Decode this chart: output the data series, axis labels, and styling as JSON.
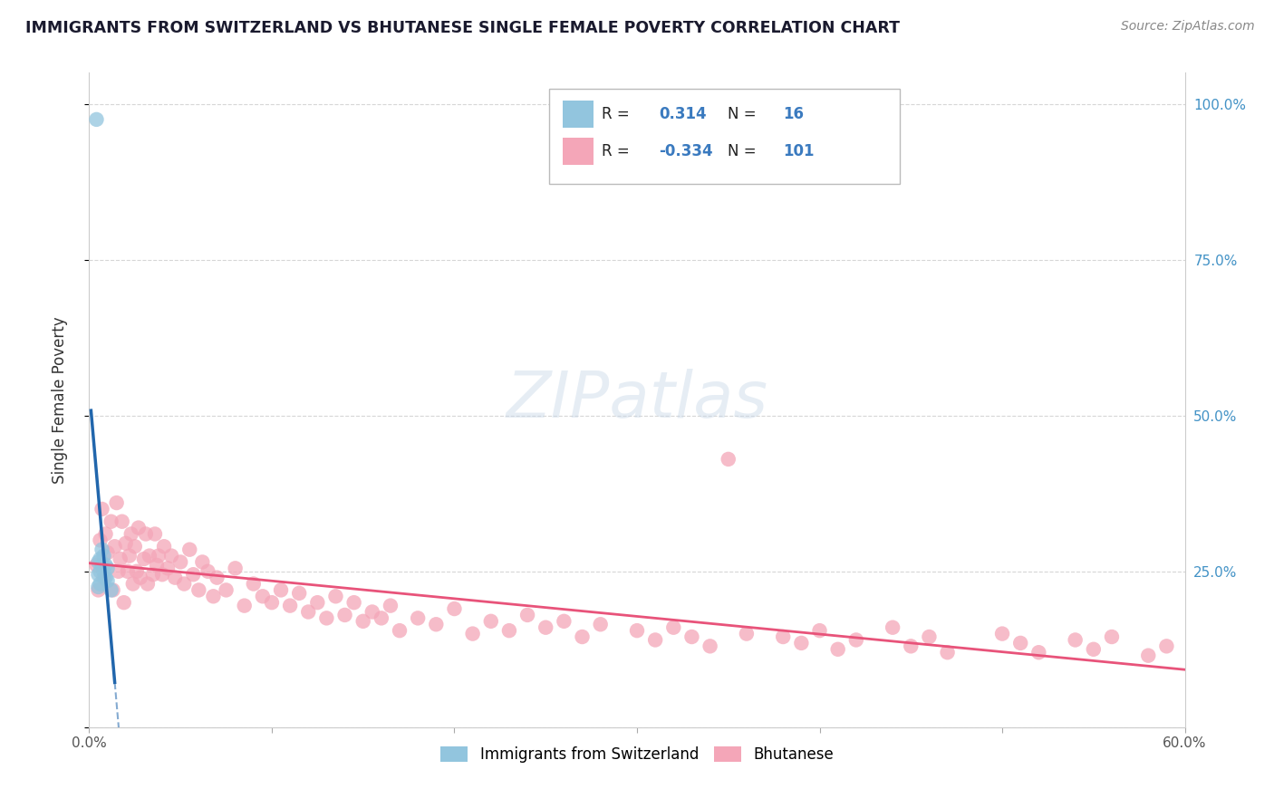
{
  "title": "IMMIGRANTS FROM SWITZERLAND VS BHUTANESE SINGLE FEMALE POVERTY CORRELATION CHART",
  "source": "Source: ZipAtlas.com",
  "ylabel": "Single Female Poverty",
  "xlim": [
    0.0,
    0.6
  ],
  "ylim": [
    0.0,
    1.05
  ],
  "xticks": [
    0.0,
    0.1,
    0.2,
    0.3,
    0.4,
    0.5,
    0.6
  ],
  "xticklabels": [
    "0.0%",
    "",
    "",
    "",
    "",
    "",
    "60.0%"
  ],
  "yticks": [
    0.0,
    0.25,
    0.5,
    0.75,
    1.0
  ],
  "ytick_labels_right": [
    "",
    "25.0%",
    "50.0%",
    "75.0%",
    "100.0%"
  ],
  "R_blue": 0.314,
  "N_blue": 16,
  "R_pink": -0.334,
  "N_pink": 101,
  "blue_color": "#92c5de",
  "pink_color": "#f4a6b8",
  "blue_line_color": "#2166ac",
  "pink_line_color": "#e8537a",
  "background_color": "#ffffff",
  "grid_color": "#cccccc",
  "title_color": "#1a1a2e",
  "tick_label_color": "#4292c6",
  "swiss_points_x": [
    0.004,
    0.005,
    0.005,
    0.005,
    0.006,
    0.006,
    0.006,
    0.007,
    0.007,
    0.008,
    0.008,
    0.009,
    0.009,
    0.01,
    0.01,
    0.012
  ],
  "swiss_points_y": [
    0.975,
    0.265,
    0.245,
    0.225,
    0.27,
    0.25,
    0.23,
    0.285,
    0.26,
    0.275,
    0.25,
    0.26,
    0.24,
    0.255,
    0.235,
    0.22
  ],
  "bhutanese_points_x": [
    0.004,
    0.005,
    0.006,
    0.007,
    0.008,
    0.009,
    0.01,
    0.012,
    0.013,
    0.014,
    0.015,
    0.016,
    0.017,
    0.018,
    0.019,
    0.02,
    0.021,
    0.022,
    0.023,
    0.024,
    0.025,
    0.026,
    0.027,
    0.028,
    0.03,
    0.031,
    0.032,
    0.033,
    0.035,
    0.036,
    0.037,
    0.038,
    0.04,
    0.041,
    0.043,
    0.045,
    0.047,
    0.05,
    0.052,
    0.055,
    0.057,
    0.06,
    0.062,
    0.065,
    0.068,
    0.07,
    0.075,
    0.08,
    0.085,
    0.09,
    0.095,
    0.1,
    0.105,
    0.11,
    0.115,
    0.12,
    0.125,
    0.13,
    0.135,
    0.14,
    0.145,
    0.15,
    0.155,
    0.16,
    0.165,
    0.17,
    0.18,
    0.19,
    0.2,
    0.21,
    0.22,
    0.23,
    0.24,
    0.25,
    0.26,
    0.27,
    0.28,
    0.3,
    0.31,
    0.32,
    0.33,
    0.34,
    0.35,
    0.36,
    0.38,
    0.39,
    0.4,
    0.41,
    0.42,
    0.44,
    0.45,
    0.46,
    0.47,
    0.5,
    0.51,
    0.52,
    0.54,
    0.55,
    0.56,
    0.58,
    0.59
  ],
  "bhutanese_points_y": [
    0.26,
    0.22,
    0.3,
    0.35,
    0.24,
    0.31,
    0.28,
    0.33,
    0.22,
    0.29,
    0.36,
    0.25,
    0.27,
    0.33,
    0.2,
    0.295,
    0.25,
    0.275,
    0.31,
    0.23,
    0.29,
    0.25,
    0.32,
    0.24,
    0.27,
    0.31,
    0.23,
    0.275,
    0.245,
    0.31,
    0.26,
    0.275,
    0.245,
    0.29,
    0.255,
    0.275,
    0.24,
    0.265,
    0.23,
    0.285,
    0.245,
    0.22,
    0.265,
    0.25,
    0.21,
    0.24,
    0.22,
    0.255,
    0.195,
    0.23,
    0.21,
    0.2,
    0.22,
    0.195,
    0.215,
    0.185,
    0.2,
    0.175,
    0.21,
    0.18,
    0.2,
    0.17,
    0.185,
    0.175,
    0.195,
    0.155,
    0.175,
    0.165,
    0.19,
    0.15,
    0.17,
    0.155,
    0.18,
    0.16,
    0.17,
    0.145,
    0.165,
    0.155,
    0.14,
    0.16,
    0.145,
    0.13,
    0.43,
    0.15,
    0.145,
    0.135,
    0.155,
    0.125,
    0.14,
    0.16,
    0.13,
    0.145,
    0.12,
    0.15,
    0.135,
    0.12,
    0.14,
    0.125,
    0.145,
    0.115,
    0.13
  ]
}
